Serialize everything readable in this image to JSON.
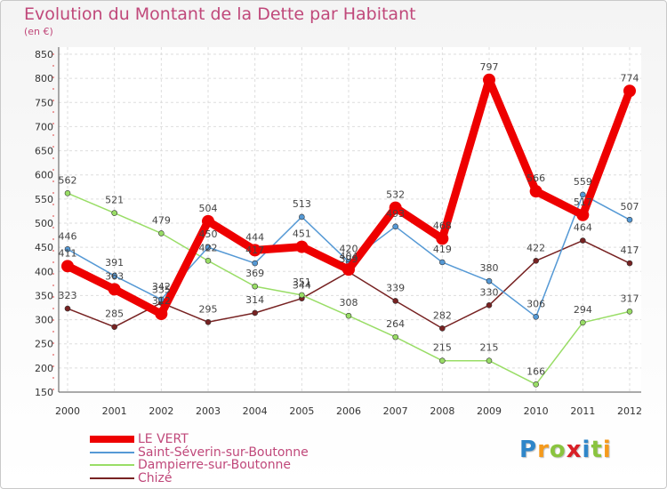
{
  "chart_data": {
    "type": "line",
    "title": "Evolution du Montant de la Dette par Habitant",
    "subtitle": "(en €)",
    "xlabel": "",
    "ylabel": "",
    "x": [
      "2000",
      "2001",
      "2002",
      "2003",
      "2004",
      "2005",
      "2006",
      "2007",
      "2008",
      "2009",
      "2010",
      "2011",
      "2012"
    ],
    "ylim": [
      150,
      850
    ],
    "yticks": [
      150,
      200,
      250,
      300,
      350,
      400,
      450,
      500,
      550,
      600,
      650,
      700,
      750,
      800,
      850
    ],
    "grid": true,
    "legend_position": "bottom-left",
    "series": [
      {
        "name": "LE VERT",
        "color": "#ee0000",
        "values": [
          411,
          363,
          312,
          504,
          444,
          451,
          404,
          532,
          468,
          797,
          566,
          517,
          774
        ]
      },
      {
        "name": "Saint-Séverin-sur-Boutonne",
        "color": "#5599d5",
        "values": [
          446,
          391,
          342,
          450,
          417,
          513,
          420,
          493,
          419,
          380,
          306,
          559,
          507
        ]
      },
      {
        "name": "Dampierre-sur-Boutonne",
        "color": "#99dd66",
        "values": [
          562,
          521,
          479,
          422,
          369,
          351,
          308,
          264,
          215,
          215,
          166,
          294,
          317
        ]
      },
      {
        "name": "Chizé",
        "color": "#772222",
        "values": [
          323,
          285,
          335,
          295,
          314,
          344,
          399,
          339,
          282,
          330,
          422,
          464,
          417
        ]
      }
    ]
  },
  "logo": {
    "letters": [
      "P",
      "r",
      "o",
      "x",
      "i",
      "t",
      "i"
    ],
    "colors": [
      "#2f86c9",
      "#f59a1c",
      "#8ac43f",
      "#d92027",
      "#2f86c9",
      "#8ac43f",
      "#f59a1c"
    ]
  }
}
